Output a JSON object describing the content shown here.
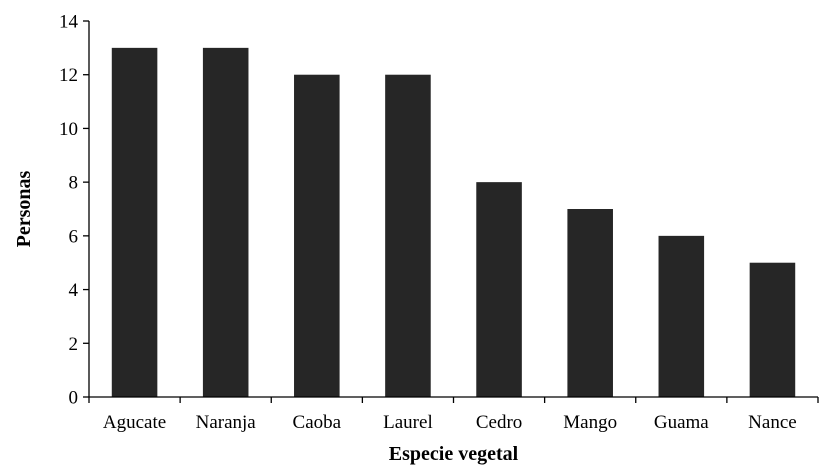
{
  "chart_data": {
    "type": "bar",
    "title": "",
    "xlabel": "Especie vegetal",
    "ylabel": "Personas",
    "categories": [
      "Agucate",
      "Naranja",
      "Caoba",
      "Laurel",
      "Cedro",
      "Mango",
      "Guama",
      "Nance"
    ],
    "values": [
      13,
      13,
      12,
      12,
      8,
      7,
      6,
      5
    ],
    "ylim": [
      0,
      14
    ],
    "yticks": [
      0,
      2,
      4,
      6,
      8,
      10,
      12,
      14
    ],
    "grid": false,
    "legend": "none",
    "bar_color": "#262626"
  }
}
